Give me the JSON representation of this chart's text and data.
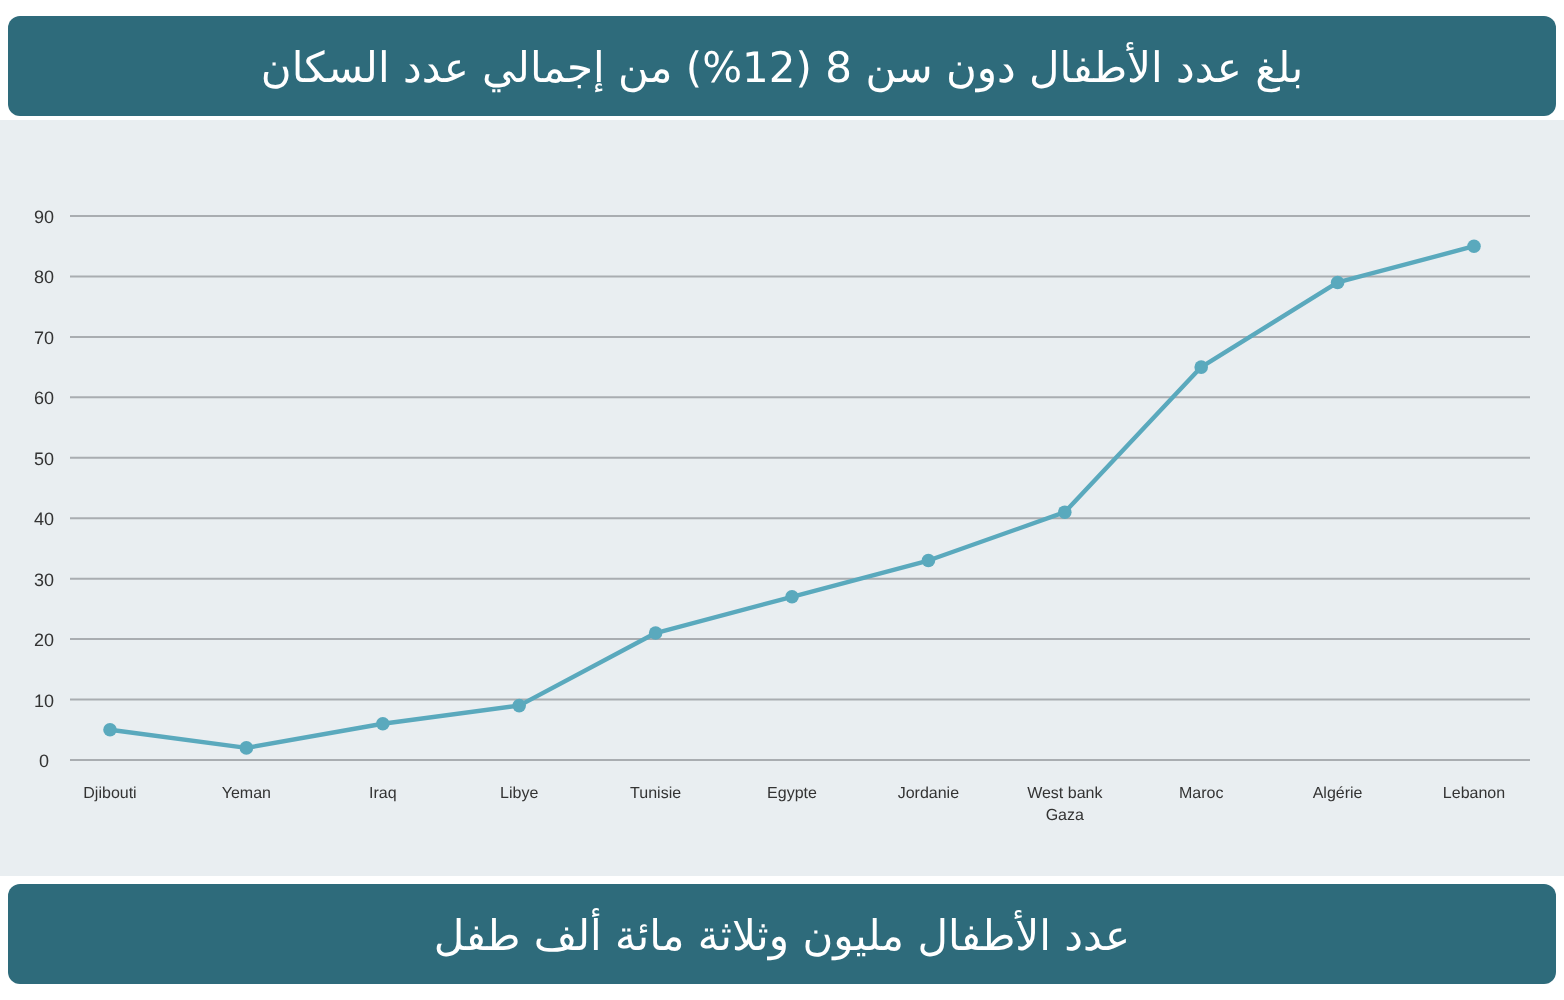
{
  "chart_data": {
    "type": "line",
    "title": "بلغ عدد الأطفال دون سن 8 (12%) من إجمالي عدد السكان",
    "categories": [
      "Djibouti",
      "Yeman",
      "Iraq",
      "Libye",
      "Tunisie",
      "Egypte",
      "Jordanie",
      "West bank Gaza",
      "Maroc",
      "Algérie",
      "Lebanon"
    ],
    "values": [
      5,
      2,
      6,
      9,
      21,
      27,
      33,
      41,
      65,
      79,
      85
    ],
    "color": "#5aa9bd",
    "ylim": [
      0,
      90
    ],
    "yticks": [
      0,
      10,
      20,
      30,
      40,
      50,
      60,
      70,
      80,
      90
    ],
    "grid": "y",
    "marker": "circle",
    "line_style": "solid",
    "annotations": [
      "عدد الأطفال مليون وثلاثة مائة ألف طفل"
    ]
  }
}
